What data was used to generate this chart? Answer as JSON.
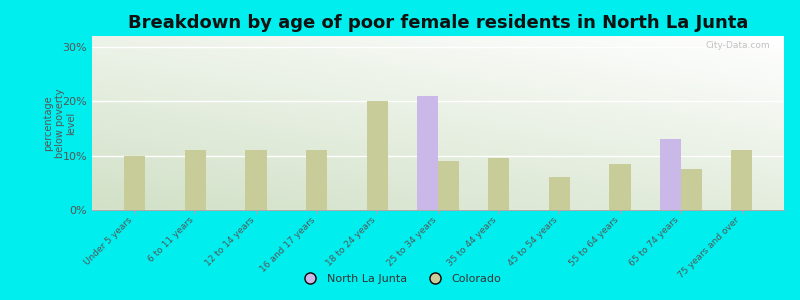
{
  "title": "Breakdown by age of poor female residents in North La Junta",
  "categories": [
    "Under 5 years",
    "6 to 11 years",
    "12 to 14 years",
    "16 and 17 years",
    "18 to 24 years",
    "25 to 34 years",
    "35 to 44 years",
    "45 to 54 years",
    "55 to 64 years",
    "65 to 74 years",
    "75 years and over"
  ],
  "north_la_junta": [
    0,
    0,
    0,
    0,
    0,
    21.0,
    0,
    0,
    0,
    13.0,
    0
  ],
  "colorado": [
    10.0,
    11.0,
    11.0,
    11.0,
    20.0,
    9.0,
    9.5,
    6.0,
    8.5,
    7.5,
    11.0
  ],
  "north_la_junta_color": "#c9b8e8",
  "colorado_color": "#c8cc99",
  "background_color": "#00eeee",
  "ylabel": "percentage\nbelow poverty\nlevel",
  "ylim": [
    0,
    32
  ],
  "yticks": [
    0,
    10,
    20,
    30
  ],
  "ytick_labels": [
    "0%",
    "10%",
    "20%",
    "30%"
  ],
  "title_fontsize": 13,
  "bar_width": 0.35,
  "watermark": "City-Data.com"
}
